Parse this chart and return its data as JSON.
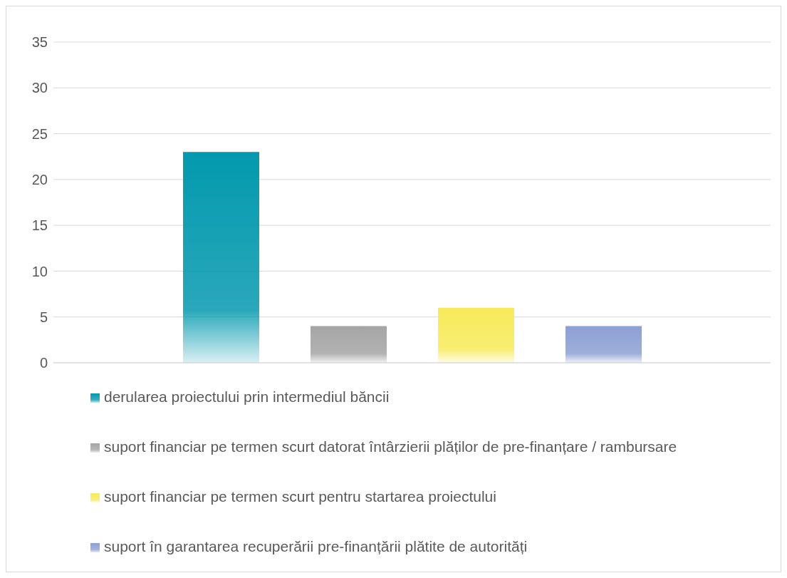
{
  "chart_data": {
    "type": "bar",
    "categories": [
      null
    ],
    "series": [
      {
        "name": "derularea proiectului prin intermediul băncii",
        "color": "#0399ae",
        "values": [
          23
        ]
      },
      {
        "name": "suport financiar pe termen scurt datorat întârzierii plăților de pre-finanțare / rambursare",
        "color": "#a5a5a5",
        "values": [
          4
        ]
      },
      {
        "name": "suport financiar pe termen scurt pentru startarea proiectului",
        "color": "#f7ea5a",
        "values": [
          6
        ]
      },
      {
        "name": "suport în garantarea recuperării pre-finanțării plătite de autorități",
        "color": "#8da0d4",
        "values": [
          4
        ]
      }
    ],
    "ylim": [
      0,
      35
    ],
    "yticks": [
      0,
      5,
      10,
      15,
      20,
      25,
      30,
      35
    ],
    "grid": "y",
    "legend": "bottom"
  }
}
